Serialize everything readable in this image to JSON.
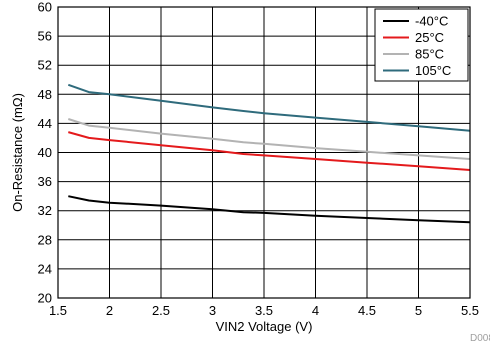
{
  "chart_data": {
    "type": "line",
    "xlabel": "VIN2 Voltage (V)",
    "ylabel": "On-Resistance (mΩ)",
    "xlim": [
      1.5,
      5.5
    ],
    "ylim": [
      20,
      60
    ],
    "x_ticks": [
      1.5,
      2,
      2.5,
      3,
      3.5,
      4,
      4.5,
      5,
      5.5
    ],
    "y_ticks": [
      20,
      24,
      28,
      32,
      36,
      40,
      44,
      48,
      52,
      56,
      60
    ],
    "grid": true,
    "legend_position": "top-right",
    "series": [
      {
        "name": "-40°C",
        "color": "#000000",
        "x": [
          1.6,
          1.8,
          2.0,
          2.5,
          3.0,
          3.3,
          3.5,
          4.0,
          4.5,
          5.0,
          5.5
        ],
        "y": [
          34.0,
          33.4,
          33.1,
          32.7,
          32.2,
          31.8,
          31.7,
          31.3,
          31.0,
          30.7,
          30.4
        ]
      },
      {
        "name": "25°C",
        "color": "#e41a1c",
        "x": [
          1.6,
          1.8,
          2.0,
          2.5,
          3.0,
          3.3,
          3.5,
          4.0,
          4.5,
          5.0,
          5.5
        ],
        "y": [
          42.8,
          42.0,
          41.7,
          41.0,
          40.3,
          39.8,
          39.6,
          39.1,
          38.6,
          38.1,
          37.6
        ]
      },
      {
        "name": "85°C",
        "color": "#b3b3b3",
        "x": [
          1.6,
          1.8,
          2.0,
          2.5,
          3.0,
          3.3,
          3.5,
          4.0,
          4.5,
          5.0,
          5.5
        ],
        "y": [
          44.6,
          43.7,
          43.4,
          42.6,
          41.9,
          41.4,
          41.2,
          40.6,
          40.1,
          39.6,
          39.1
        ]
      },
      {
        "name": "105°C",
        "color": "#2f6b7c",
        "x": [
          1.6,
          1.8,
          2.0,
          2.5,
          3.0,
          3.3,
          3.5,
          4.0,
          4.5,
          5.0,
          5.5
        ],
        "y": [
          49.3,
          48.3,
          48.0,
          47.1,
          46.2,
          45.7,
          45.4,
          44.8,
          44.2,
          43.6,
          43.0
        ]
      }
    ],
    "footer_id": "D008"
  }
}
